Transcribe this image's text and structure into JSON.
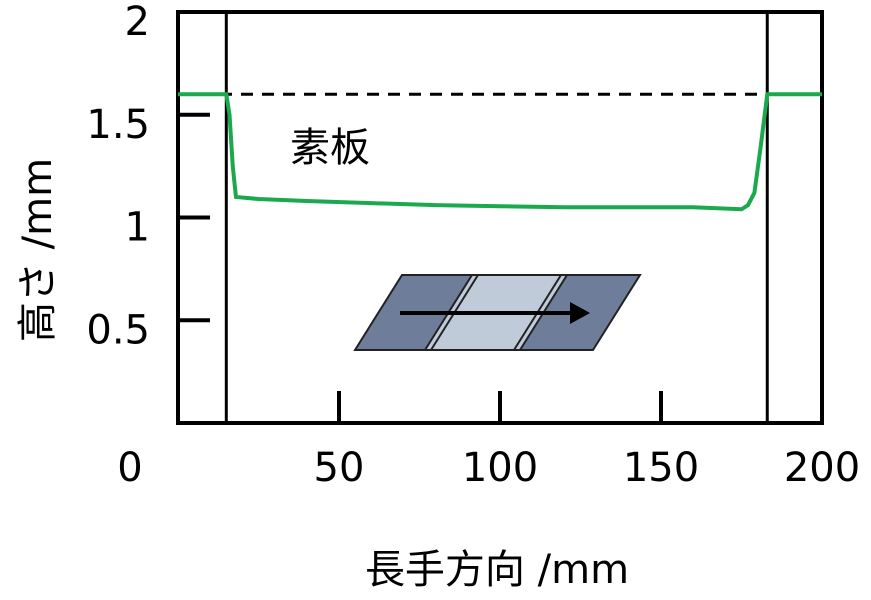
{
  "chart_data": {
    "type": "line",
    "x_label": "長手方向 /mm",
    "y_label": "高さ /mm",
    "annotation": "素板",
    "xlim": [
      0,
      200
    ],
    "ylim": [
      0,
      2
    ],
    "xticks": [
      0,
      50,
      100,
      150,
      200
    ],
    "yticks": [
      0.5,
      1,
      1.5,
      2
    ],
    "vlines": [
      15,
      183
    ],
    "hline": 1.6,
    "series": [
      {
        "color": "#1aa94c",
        "x": [
          0,
          15,
          16,
          17,
          18,
          25,
          40,
          60,
          80,
          100,
          120,
          140,
          160,
          175,
          177,
          179,
          181,
          183,
          200
        ],
        "values": [
          1.6,
          1.6,
          1.5,
          1.25,
          1.1,
          1.09,
          1.08,
          1.07,
          1.06,
          1.055,
          1.05,
          1.05,
          1.05,
          1.04,
          1.06,
          1.12,
          1.35,
          1.6,
          1.6
        ]
      }
    ]
  }
}
